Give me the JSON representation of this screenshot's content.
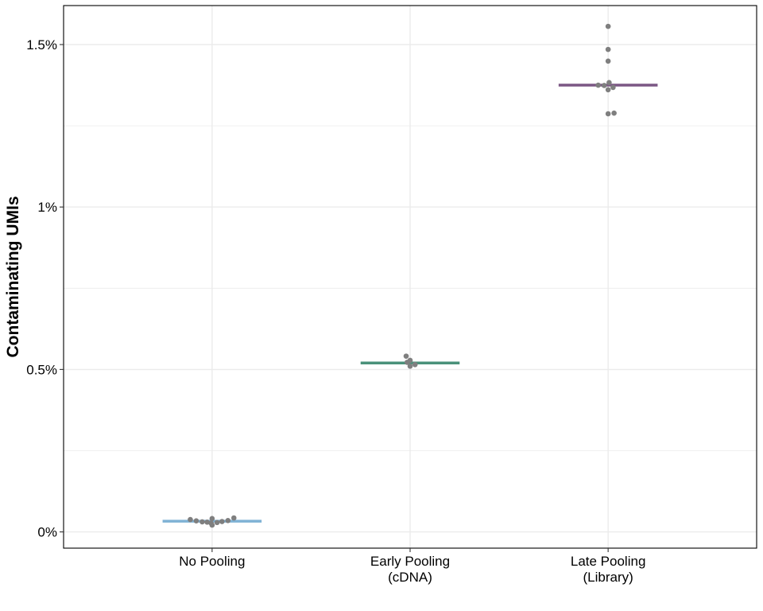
{
  "chart_data": {
    "type": "scatter",
    "title": "",
    "xlabel": "",
    "ylabel": "Contaminating UMIs",
    "categories": [
      [
        "No Pooling"
      ],
      [
        "Early Pooling",
        "(cDNA)"
      ],
      [
        "Late Pooling",
        "(Library)"
      ]
    ],
    "ylim": [
      -0.0005,
      0.0162
    ],
    "yticks": [
      {
        "value": 0.0,
        "label": "0%"
      },
      {
        "value": 0.005,
        "label": "0.5%"
      },
      {
        "value": 0.01,
        "label": "1%"
      },
      {
        "value": 0.015,
        "label": "1.5%"
      }
    ],
    "minor_yticks": [
      0.0025,
      0.0075,
      0.0125
    ],
    "grid": true,
    "series": [
      {
        "category_index": 0,
        "color": "#7fb2d5",
        "median": 0.00033,
        "points": [
          {
            "offset": -0.11,
            "value": 0.00038
          },
          {
            "offset": -0.08,
            "value": 0.00034
          },
          {
            "offset": -0.05,
            "value": 0.00031
          },
          {
            "offset": -0.025,
            "value": 0.0003
          },
          {
            "offset": -0.005,
            "value": 0.00027
          },
          {
            "offset": 0.0,
            "value": 0.00041
          },
          {
            "offset": 0.0,
            "value": 0.00021
          },
          {
            "offset": 0.025,
            "value": 0.00029
          },
          {
            "offset": 0.05,
            "value": 0.00032
          },
          {
            "offset": 0.08,
            "value": 0.00035
          },
          {
            "offset": 0.11,
            "value": 0.00043
          }
        ]
      },
      {
        "category_index": 1,
        "color": "#4a917a",
        "median": 0.0052,
        "points": [
          {
            "offset": -0.02,
            "value": 0.00541
          },
          {
            "offset": 0.0,
            "value": 0.00528
          },
          {
            "offset": 0.0,
            "value": 0.0051
          },
          {
            "offset": 0.025,
            "value": 0.00515
          },
          {
            "offset": -0.015,
            "value": 0.00522
          }
        ]
      },
      {
        "category_index": 2,
        "color": "#7b5784",
        "median": 0.01375,
        "points": [
          {
            "offset": 0.0,
            "value": 0.01556
          },
          {
            "offset": 0.0,
            "value": 0.01485
          },
          {
            "offset": 0.0,
            "value": 0.01449
          },
          {
            "offset": -0.05,
            "value": 0.01375
          },
          {
            "offset": -0.02,
            "value": 0.01374
          },
          {
            "offset": 0.005,
            "value": 0.01383
          },
          {
            "offset": 0.025,
            "value": 0.01368
          },
          {
            "offset": 0.0,
            "value": 0.01361
          },
          {
            "offset": 0.0,
            "value": 0.01287
          },
          {
            "offset": 0.03,
            "value": 0.01289
          }
        ]
      }
    ],
    "point_color": "#7f7f7f",
    "axis_color": "#000000",
    "grid_color": "#ebebeb"
  }
}
